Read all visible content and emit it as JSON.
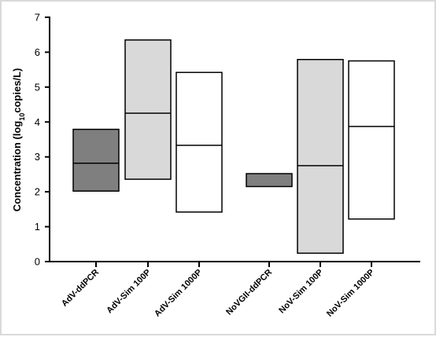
{
  "chart_data": {
    "type": "floating-bar",
    "ylabel_parts": [
      "Concentration (log",
      "10",
      "copies/L)"
    ],
    "ylim": [
      0,
      7
    ],
    "yticks": [
      "0",
      "1",
      "2",
      "3",
      "4",
      "5",
      "6",
      "7"
    ],
    "grid": false,
    "categories": [
      "AdV-ddPCR",
      "AdV-Sim 100P",
      "AdV-Sim 1000P",
      "NoVGII-ddPCR",
      "NoV-Sim 100P",
      "NoV-Sim 1000P"
    ],
    "ranges": [
      {
        "min": 2.02,
        "max": 3.79,
        "line": 2.82
      },
      {
        "min": 2.36,
        "max": 6.35,
        "line": 4.25
      },
      {
        "min": 1.42,
        "max": 5.42,
        "line": 3.33
      },
      {
        "min": 2.15,
        "max": 2.52,
        "line": null
      },
      {
        "min": 0.24,
        "max": 5.79,
        "line": 2.75
      },
      {
        "min": 1.22,
        "max": 5.75,
        "line": 3.87
      }
    ],
    "fills": [
      "#7f7f7f",
      "#d9d9d9",
      "#ffffff",
      "#7f7f7f",
      "#d9d9d9",
      "#ffffff"
    ]
  }
}
